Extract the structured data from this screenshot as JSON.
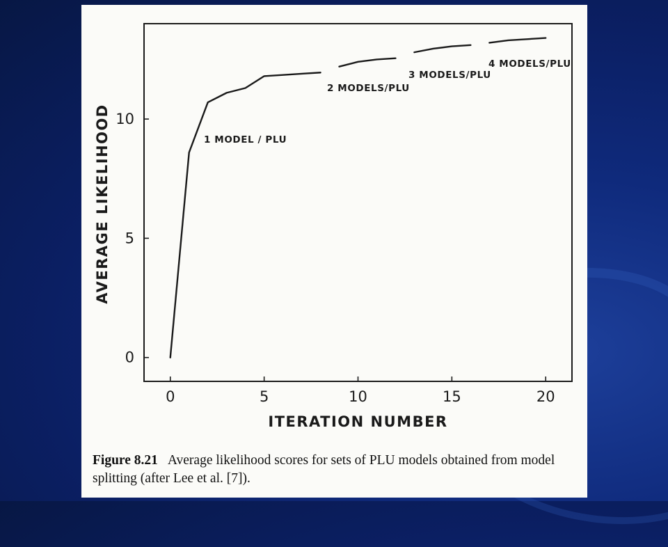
{
  "slide": {
    "background_color": "#0b1f63"
  },
  "chart_data": {
    "type": "line",
    "xlabel": "ITERATION NUMBER",
    "ylabel": "AVERAGE LIKELIHOOD",
    "xlim": [
      -1.4,
      21.4
    ],
    "ylim": [
      -1.0,
      14.0
    ],
    "xticks": [
      0,
      5,
      10,
      15,
      20
    ],
    "yticks": [
      0,
      5,
      10
    ],
    "grid": false,
    "series": [
      {
        "name": "1 MODEL / PLU",
        "x": [
          0,
          1,
          2,
          3,
          4,
          5,
          6,
          7,
          8
        ],
        "y": [
          0.0,
          8.6,
          10.7,
          11.1,
          11.3,
          11.8,
          11.85,
          11.9,
          11.95
        ]
      },
      {
        "name": "2 MODELS/PLU",
        "x": [
          9,
          10,
          11,
          12
        ],
        "y": [
          12.2,
          12.4,
          12.5,
          12.55
        ]
      },
      {
        "name": "3 MODELS/PLU",
        "x": [
          13,
          14,
          15,
          16
        ],
        "y": [
          12.8,
          12.95,
          13.05,
          13.1
        ]
      },
      {
        "name": "4 MODELS/PLU",
        "x": [
          17,
          18,
          19,
          20
        ],
        "y": [
          13.2,
          13.3,
          13.35,
          13.4
        ]
      }
    ]
  },
  "caption": {
    "label": "Figure 8.21",
    "text": "Average likelihood scores for sets of PLU models obtained from model splitting (after Lee et al. [7])."
  }
}
